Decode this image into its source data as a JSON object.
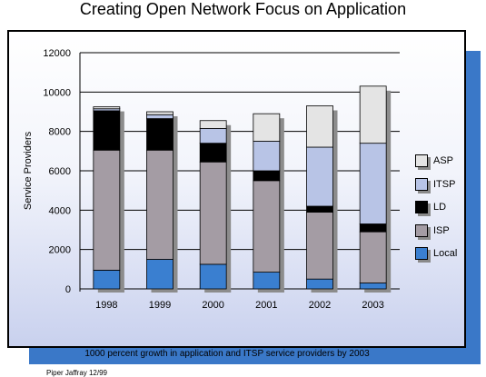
{
  "header": {
    "title": "Creating Open Network Focus on Application"
  },
  "chart_data": {
    "type": "bar",
    "stacked": true,
    "title": "Creating Open Network Focus on Application",
    "xlabel": "",
    "ylabel": "Service Providers",
    "ylim": [
      0,
      12000
    ],
    "yticks": [
      "0",
      "2000",
      "4000",
      "6000",
      "8000",
      "10000",
      "12000"
    ],
    "grid": true,
    "legend_position": "right",
    "categories": [
      "1998",
      "1999",
      "2000",
      "2001",
      "2002",
      "2003"
    ],
    "series": [
      {
        "name": "Local",
        "color": "#3a7fd0",
        "values": [
          950,
          1500,
          1250,
          850,
          500,
          300
        ]
      },
      {
        "name": "ISP",
        "color": "#a49ca4",
        "values": [
          6100,
          5550,
          5200,
          4650,
          3400,
          2600
        ]
      },
      {
        "name": "LD",
        "color": "#000000",
        "values": [
          2000,
          1600,
          950,
          500,
          300,
          400
        ]
      },
      {
        "name": "ITSP",
        "color": "#b8c4e6",
        "values": [
          100,
          200,
          750,
          1500,
          3000,
          4100
        ]
      },
      {
        "name": "ASP",
        "color": "#e4e4e4",
        "values": [
          100,
          150,
          400,
          1400,
          2100,
          2900
        ]
      }
    ],
    "annotation": "1000 percent growth in application and ITSP service providers by 2003",
    "source": "Piper Jaffray 12/99"
  }
}
